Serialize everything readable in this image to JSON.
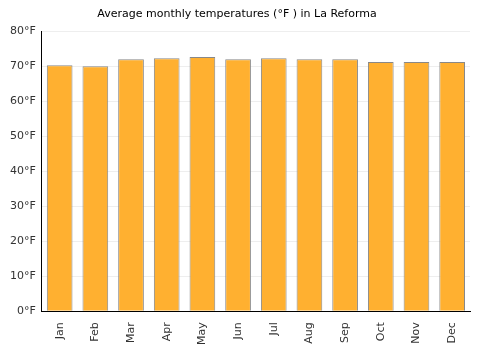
{
  "chart_data": {
    "type": "bar",
    "title": "Average monthly temperatures (°F ) in La Reforma",
    "categories": [
      "Jan",
      "Feb",
      "Mar",
      "Apr",
      "May",
      "Jun",
      "Jul",
      "Aug",
      "Sep",
      "Oct",
      "Nov",
      "Dec"
    ],
    "values": [
      70.3,
      70.0,
      72.0,
      72.3,
      72.6,
      72.0,
      72.3,
      72.0,
      72.0,
      71.2,
      71.2,
      71.2
    ],
    "color": "#ffb030",
    "ylim": [
      0,
      80
    ],
    "yticks": [
      {
        "value": 0,
        "label": "0°F"
      },
      {
        "value": 10,
        "label": "10°F"
      },
      {
        "value": 20,
        "label": "20°F"
      },
      {
        "value": 30,
        "label": "30°F"
      },
      {
        "value": 40,
        "label": "40°F"
      },
      {
        "value": 50,
        "label": "50°F"
      },
      {
        "value": 60,
        "label": "60°F"
      },
      {
        "value": 70,
        "label": "70°F"
      },
      {
        "value": 80,
        "label": "80°F"
      }
    ],
    "grid": true
  }
}
